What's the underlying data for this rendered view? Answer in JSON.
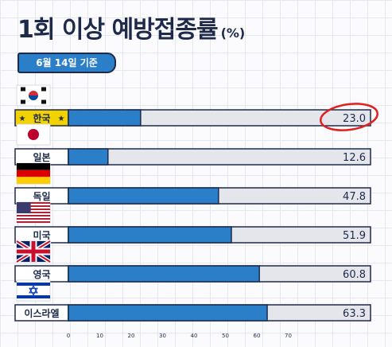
{
  "header": {
    "title": "1회 이상 예방접종률",
    "unit": "(%)",
    "date": "6월 14일 기준"
  },
  "colors": {
    "bar": "#2b7fc8",
    "track": "#e4e6ec",
    "outline": "#1d2a4a",
    "highlight_label": "#f2d200",
    "circle": "#e02020"
  },
  "chart_data": {
    "type": "bar",
    "orientation": "horizontal",
    "categories": [
      "한국",
      "일본",
      "독일",
      "미국",
      "영국",
      "이스라엘"
    ],
    "values": [
      23.0,
      12.6,
      47.8,
      51.9,
      60.8,
      63.3
    ],
    "value_labels": [
      "23.0",
      "12.6",
      "47.8",
      "51.9",
      "60.8",
      "63.3"
    ],
    "highlight_category": "한국",
    "highlight_marks": "★",
    "flags": [
      "korea-flag-icon",
      "japan-flag-icon",
      "germany-flag-icon",
      "usa-flag-icon",
      "uk-flag-icon",
      "israel-flag-icon"
    ],
    "xlim": [
      0,
      100
    ],
    "xticks": [
      "0",
      "10",
      "20",
      "30",
      "40",
      "50",
      "60",
      "70"
    ],
    "title": "1회 이상 예방접종률",
    "xlabel": "",
    "ylabel": ""
  }
}
